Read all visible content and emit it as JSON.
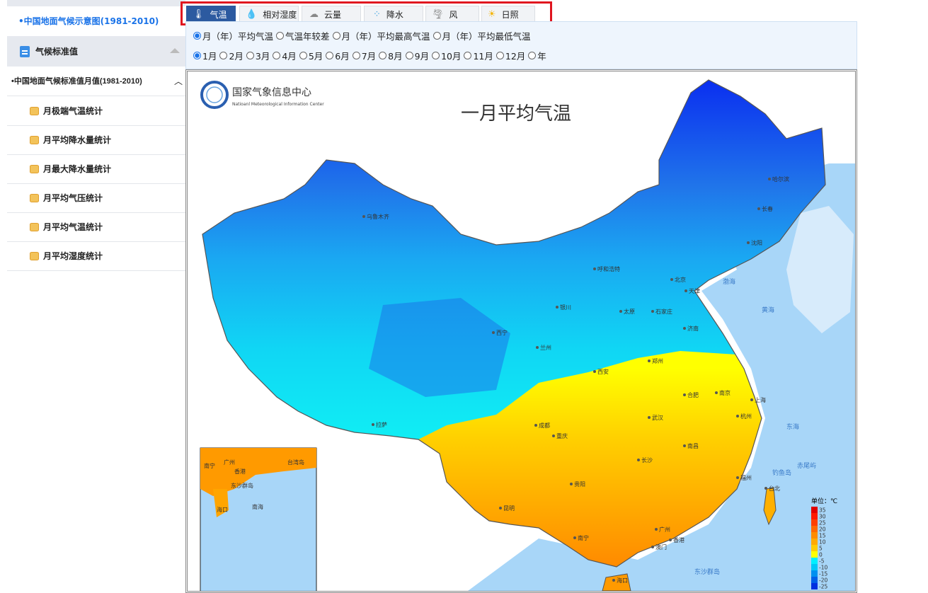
{
  "sidebar": {
    "link": "•中国地面气候示意图(1981-2010)",
    "section": "气候标准值",
    "subsection": "•中国地面气候标准值月值(1981-2010)",
    "items": [
      "月极端气温统计",
      "月平均降水量统计",
      "月最大降水量统计",
      "月平均气压统计",
      "月平均气温统计",
      "月平均湿度统计"
    ]
  },
  "tabs": [
    {
      "label": "气温",
      "icon": "thermometer-icon",
      "active": true
    },
    {
      "label": "相对湿度",
      "icon": "droplet-icon"
    },
    {
      "label": "云量",
      "icon": "cloud-icon"
    },
    {
      "label": "降水",
      "icon": "rain-icon"
    },
    {
      "label": "风",
      "icon": "wind-icon"
    },
    {
      "label": "日照",
      "icon": "sun-icon"
    }
  ],
  "variables": {
    "options": [
      "月（年）平均气温",
      "气温年较差",
      "月（年）平均最高气温",
      "月（年）平均最低气温"
    ],
    "selected": "月（年）平均气温"
  },
  "months": {
    "options": [
      "1月",
      "2月",
      "3月",
      "4月",
      "5月",
      "6月",
      "7月",
      "8月",
      "9月",
      "10月",
      "11月",
      "12月",
      "年"
    ],
    "selected": "1月"
  },
  "map": {
    "org_cn": "国家气象信息中心",
    "org_en": "Natioanl Meteorological Information Center",
    "title": "一月平均气温",
    "legend_unit": "单位：℃",
    "legend": [
      {
        "label": "35",
        "color": "#e00000"
      },
      {
        "label": "30",
        "color": "#ff1a00"
      },
      {
        "label": "25",
        "color": "#ff4000"
      },
      {
        "label": "20",
        "color": "#ff6a00"
      },
      {
        "label": "15",
        "color": "#ff8c00"
      },
      {
        "label": "10",
        "color": "#ffaa00"
      },
      {
        "label": "5",
        "color": "#ffcc00"
      },
      {
        "label": "0",
        "color": "#ffff00"
      },
      {
        "label": "-5",
        "color": "#00f0ff"
      },
      {
        "label": "-10",
        "color": "#00c8f8"
      },
      {
        "label": "-15",
        "color": "#0090f0"
      },
      {
        "label": "-20",
        "color": "#0060e8"
      },
      {
        "label": "-25",
        "color": "#0030e0"
      }
    ],
    "cities": [
      "乌鲁木齐",
      "哈尔滨",
      "长春",
      "沈阳",
      "北京",
      "天津",
      "呼和浩特",
      "太原",
      "石家庄",
      "济南",
      "西宁",
      "兰州",
      "银川",
      "西安",
      "郑州",
      "合肥",
      "南京",
      "上海",
      "杭州",
      "武汉",
      "成都",
      "重庆",
      "拉萨",
      "长沙",
      "南昌",
      "福州",
      "台北",
      "贵阳",
      "昆明",
      "南宁",
      "广州",
      "香港",
      "澳门",
      "海口"
    ],
    "seas": [
      "渤海",
      "黄海",
      "东海",
      "东沙群岛",
      "钓鱼岛",
      "赤尾屿"
    ],
    "inset": [
      "南宁",
      "广州",
      "台湾岛",
      "香港",
      "海口",
      "东沙群岛",
      "南海"
    ]
  }
}
